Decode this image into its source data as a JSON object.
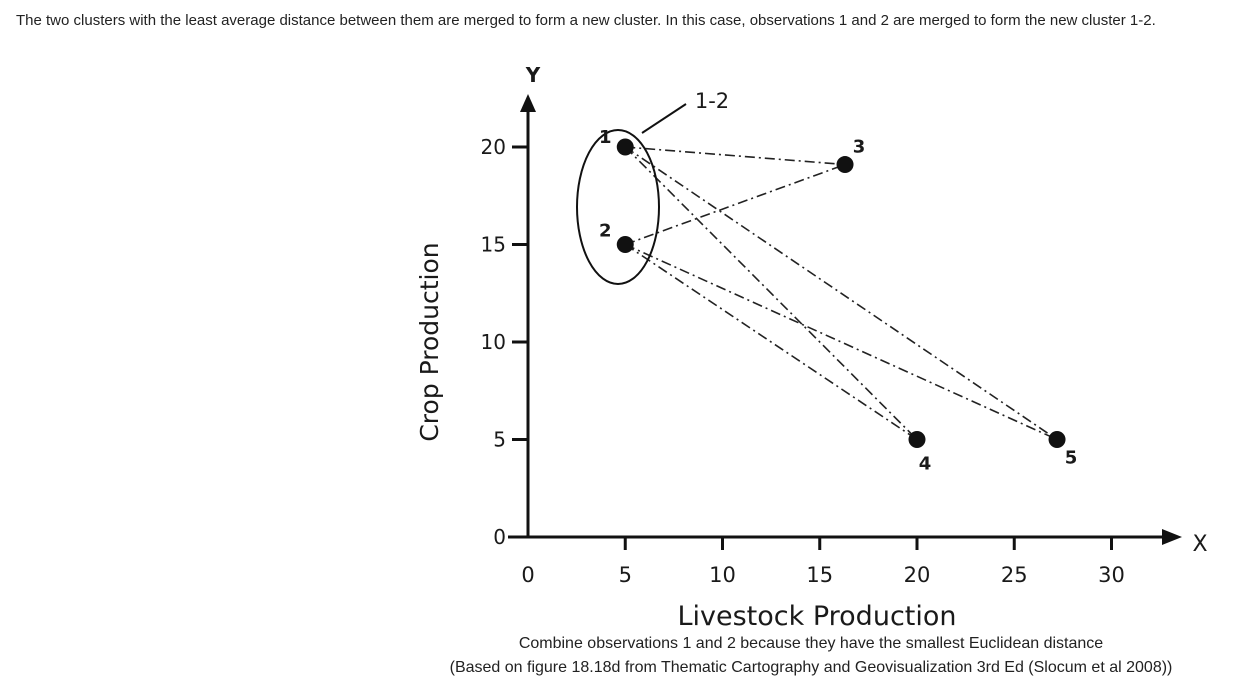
{
  "intro_text": "The two clusters with the least average distance between them are merged to form a new cluster. In this case, observations 1 and 2 are merged to form the new cluster 1-2.",
  "figure": {
    "x_axis_label": "Livestock Production",
    "y_axis_label": "Crop Production",
    "x_axis_letter": "X",
    "y_axis_letter": "Y",
    "x_ticks": [
      "0",
      "5",
      "10",
      "15",
      "20",
      "25",
      "30"
    ],
    "y_ticks": [
      "0",
      "5",
      "10",
      "15",
      "20"
    ],
    "cluster_label": "1-2",
    "points": [
      {
        "label": "1",
        "x": 5,
        "y": 20
      },
      {
        "label": "2",
        "x": 5,
        "y": 15
      },
      {
        "label": "3",
        "x": 16.3,
        "y": 19.1
      },
      {
        "label": "4",
        "x": 20,
        "y": 5
      },
      {
        "label": "5",
        "x": 27.2,
        "y": 5
      }
    ],
    "links": [
      [
        "1",
        "3"
      ],
      [
        "1",
        "4"
      ],
      [
        "1",
        "5"
      ],
      [
        "2",
        "3"
      ],
      [
        "2",
        "4"
      ],
      [
        "2",
        "5"
      ]
    ]
  },
  "caption_line1": "Combine observations 1 and 2 because they have the smallest Euclidean distance",
  "caption_line2": "(Based on figure 18.18d from Thematic Cartography and Geovisualization 3rd Ed (Slocum et al 2008))"
}
